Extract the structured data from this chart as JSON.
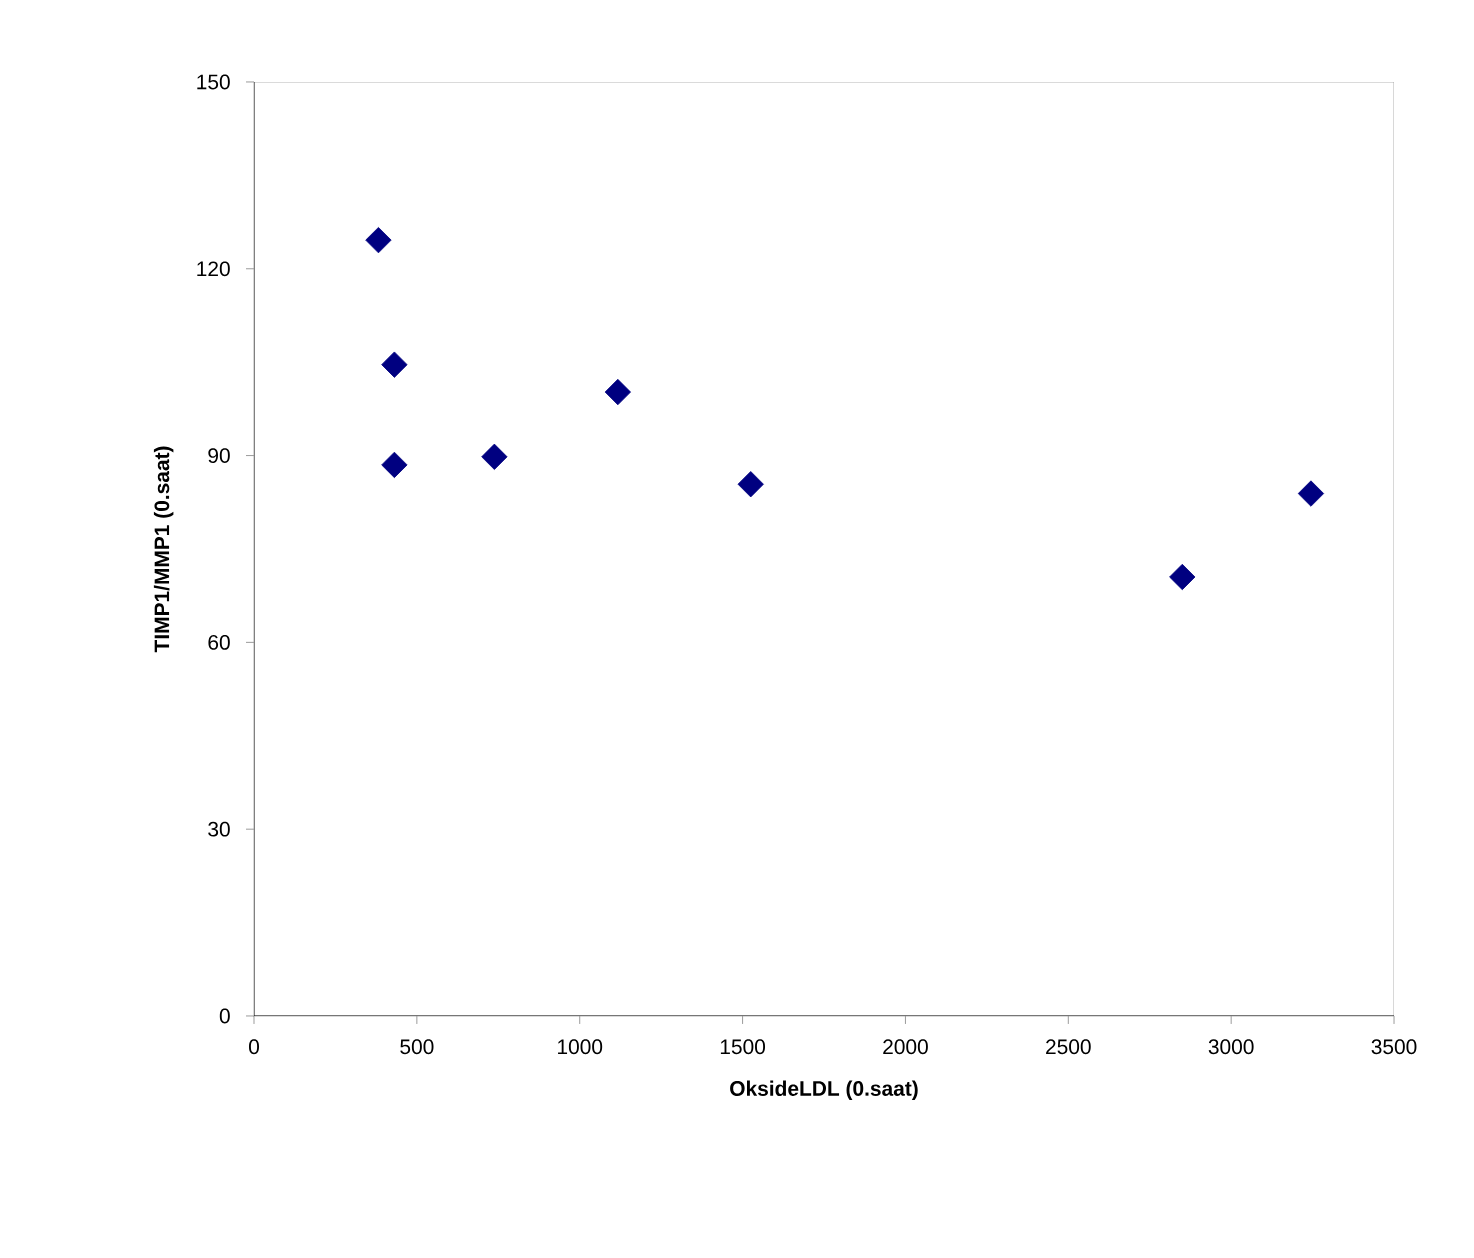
{
  "chart_data": {
    "type": "scatter",
    "xlabel": "OksideLDL (0.saat)",
    "ylabel": "TIMP1/MMP1 (0.saat)",
    "x": [
      382,
      431,
      431,
      738,
      1117,
      1525,
      2850,
      3245
    ],
    "values": [
      124.6,
      104.6,
      88.5,
      89.8,
      100.2,
      85.4,
      70.5,
      83.9
    ],
    "color": "#000080",
    "marker": "diamond",
    "xlim": [
      0,
      3500
    ],
    "xticks": [
      0,
      500,
      1000,
      1500,
      2000,
      2500,
      3000,
      3500
    ],
    "ylim": [
      0,
      150
    ],
    "yticks": [
      0,
      30,
      60,
      90,
      120,
      150
    ],
    "grid": false
  }
}
